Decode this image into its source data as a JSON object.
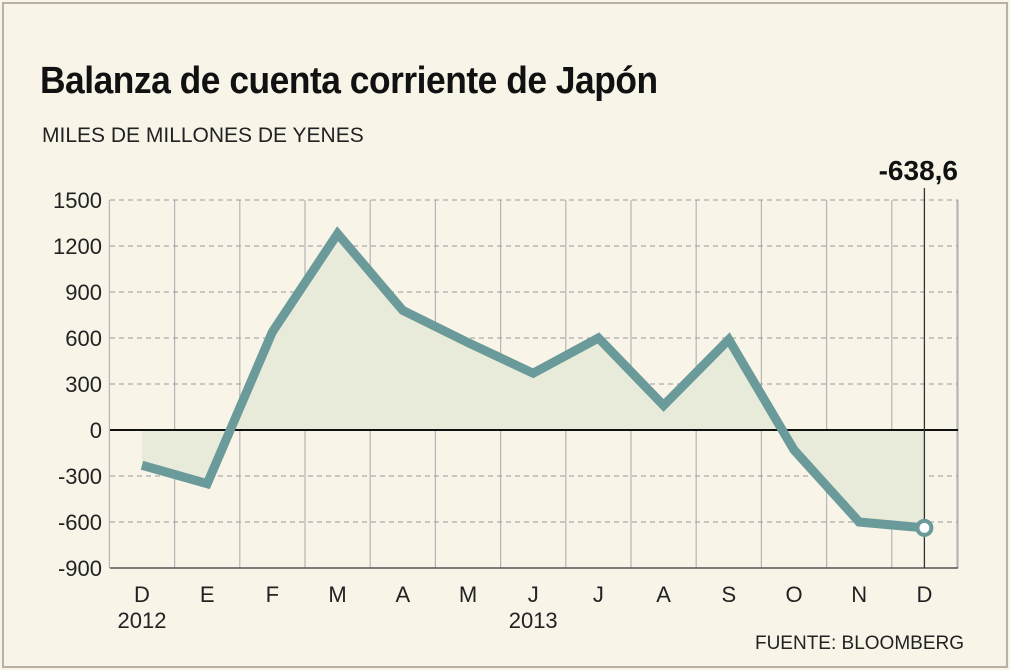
{
  "title": "Balanza de cuenta corriente de Japón",
  "subtitle": "MILES DE MILLONES DE YENES",
  "source": "FUENTE: BLOOMBERG",
  "chart_data": {
    "type": "area",
    "categories": [
      "D",
      "E",
      "F",
      "M",
      "A",
      "M",
      "J",
      "J",
      "A",
      "S",
      "O",
      "N",
      "D"
    ],
    "year_labels": [
      {
        "category_index": 0,
        "label": "2012"
      },
      {
        "category_index": 6,
        "label": "2013"
      }
    ],
    "values": [
      -230,
      -350,
      640,
      1280,
      780,
      570,
      370,
      600,
      160,
      590,
      -130,
      -600,
      -638.6
    ],
    "yticks": [
      1500,
      1200,
      900,
      600,
      300,
      0,
      -300,
      -600,
      -900
    ],
    "ylim": [
      -900,
      1500
    ],
    "annotation": {
      "category_index": 12,
      "label": "-638,6"
    },
    "grid": true,
    "line_color": "#6a9a9a",
    "fill_color": "#e9ebda"
  }
}
